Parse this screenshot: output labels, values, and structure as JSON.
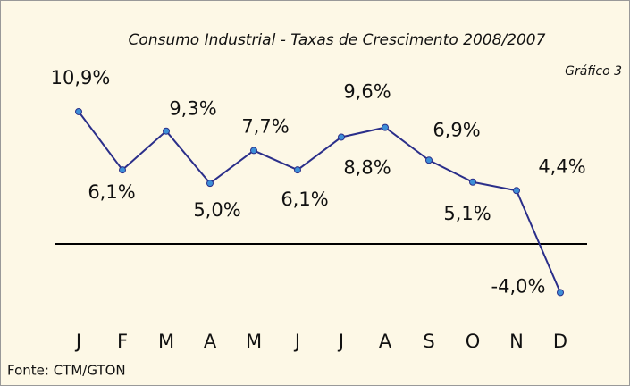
{
  "chart_data": {
    "type": "line",
    "title": "Consumo Industrial - Taxas de Crescimento 2008/2007",
    "subtitle": "Gráfico 3",
    "source": "Fonte: CTM/GTON",
    "categories": [
      "J",
      "F",
      "M",
      "A",
      "M",
      "J",
      "J",
      "A",
      "S",
      "O",
      "N",
      "D"
    ],
    "series": [
      {
        "color": "#2b2f8a",
        "values": [
          10.9,
          6.1,
          9.3,
          5.0,
          7.7,
          6.1,
          8.8,
          9.6,
          6.9,
          5.1,
          4.4,
          -4.0
        ],
        "value_labels": [
          "10,9%",
          "6,1%",
          "9,3%",
          "5,0%",
          "7,7%",
          "6,1%",
          "8,8%",
          "9,6%",
          "6,9%",
          "5,1%",
          "4,4%",
          "-4,0%"
        ]
      }
    ],
    "ylim": [
      -5,
      12
    ]
  }
}
